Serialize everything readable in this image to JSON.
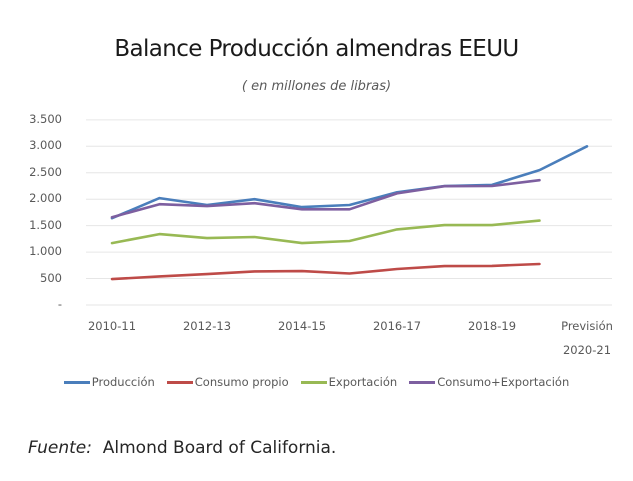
{
  "title": "Balance Producción almendras EEUU",
  "subtitle": "( en millones de libras)",
  "source": {
    "label": "Fuente:",
    "text": "Almond Board of California."
  },
  "y_axis": {
    "ticks": [
      "3.500",
      "3.000",
      "2.500",
      "2.000",
      "1.500",
      "1.000",
      "500",
      "-"
    ]
  },
  "x_axis": {
    "ticks": [
      "2010-11",
      "2012-13",
      "2014-15",
      "2016-17",
      "2018-19",
      "Previsión"
    ],
    "last_tick_line2": "2020-21"
  },
  "legend": [
    {
      "label": "Producción",
      "color": "#4a7ebb"
    },
    {
      "label": "Consumo propio",
      "color": "#be4b48"
    },
    {
      "label": "Exportación",
      "color": "#98b954"
    },
    {
      "label": "Consumo+Exportación",
      "color": "#7d5fa0"
    }
  ],
  "chart_data": {
    "type": "line",
    "title": "Balance Producción almendras EEUU",
    "subtitle": "( en millones de libras)",
    "xlabel": "",
    "ylabel": "",
    "x": [
      "2010-11",
      "2011-12",
      "2012-13",
      "2013-14",
      "2014-15",
      "2015-16",
      "2016-17",
      "2017-18",
      "2018-19",
      "2019-20",
      "Previsión 2020-21"
    ],
    "ylim": [
      0,
      3500
    ],
    "yticks": [
      0,
      500,
      1000,
      1500,
      2000,
      2500,
      3000,
      3500
    ],
    "grid": true,
    "legend_position": "bottom",
    "series": [
      {
        "name": "Producción",
        "color": "#4a7ebb",
        "values": [
          1640,
          2020,
          1890,
          2000,
          1850,
          1890,
          2130,
          2250,
          2270,
          2550,
          3000
        ]
      },
      {
        "name": "Consumo propio",
        "color": "#be4b48",
        "values": [
          490,
          540,
          585,
          635,
          640,
          595,
          680,
          735,
          740,
          775,
          null
        ]
      },
      {
        "name": "Exportación",
        "color": "#98b954",
        "values": [
          1170,
          1340,
          1265,
          1285,
          1170,
          1210,
          1430,
          1510,
          1510,
          1595,
          null
        ]
      },
      {
        "name": "Consumo+Exportación",
        "color": "#7d5fa0",
        "values": [
          1660,
          1905,
          1870,
          1925,
          1810,
          1810,
          2110,
          2245,
          2250,
          2360,
          null
        ]
      }
    ]
  }
}
